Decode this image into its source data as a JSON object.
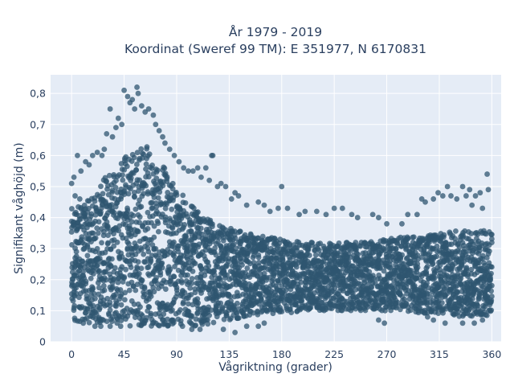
{
  "chart_data": {
    "type": "scatter",
    "title": "År 1979 - 2019",
    "subtitle": "Koordinat (Sweref 99 TM): E 351977, N 6170831",
    "xlabel": "Vågriktning (grader)",
    "ylabel": "Signifikant våghöjd (m)",
    "xlim": [
      -18,
      368
    ],
    "ylim": [
      0,
      0.86
    ],
    "x_ticks": [
      0,
      45,
      90,
      135,
      180,
      225,
      270,
      315,
      360
    ],
    "y_ticks": [
      0,
      0.1,
      0.2,
      0.3,
      0.4,
      0.5,
      0.6,
      0.7,
      0.8
    ],
    "y_tick_labels": [
      "0",
      "0,1",
      "0,2",
      "0,3",
      "0,4",
      "0,5",
      "0,6",
      "0,7",
      "0,8"
    ],
    "grid": true,
    "legend": "none",
    "colors": {
      "marker": "#2f5570",
      "plot_bg": "#e5ecf6",
      "text": "#2a3f5f"
    },
    "band_profile": {
      "x": [
        0,
        10,
        20,
        30,
        40,
        50,
        60,
        70,
        80,
        90,
        100,
        110,
        120,
        135,
        150,
        165,
        180,
        200,
        225,
        250,
        270,
        285,
        300,
        315,
        330,
        345,
        360
      ],
      "low": [
        0.07,
        0.06,
        0.06,
        0.06,
        0.06,
        0.05,
        0.05,
        0.05,
        0.05,
        0.05,
        0.05,
        0.05,
        0.06,
        0.07,
        0.08,
        0.09,
        0.09,
        0.1,
        0.1,
        0.1,
        0.1,
        0.1,
        0.09,
        0.09,
        0.08,
        0.08,
        0.08
      ],
      "high": [
        0.43,
        0.44,
        0.48,
        0.54,
        0.59,
        0.62,
        0.64,
        0.62,
        0.56,
        0.5,
        0.45,
        0.41,
        0.39,
        0.37,
        0.35,
        0.34,
        0.33,
        0.32,
        0.32,
        0.32,
        0.33,
        0.34,
        0.34,
        0.35,
        0.36,
        0.36,
        0.36
      ]
    },
    "outlier_points": [
      [
        45,
        0.81
      ],
      [
        48,
        0.79
      ],
      [
        56,
        0.82
      ],
      [
        57,
        0.8
      ],
      [
        52,
        0.78
      ],
      [
        60,
        0.76
      ],
      [
        63,
        0.74
      ],
      [
        66,
        0.75
      ],
      [
        70,
        0.73
      ],
      [
        50,
        0.77
      ],
      [
        54,
        0.75
      ],
      [
        40,
        0.72
      ],
      [
        43,
        0.7
      ],
      [
        38,
        0.69
      ],
      [
        33,
        0.75
      ],
      [
        30,
        0.67
      ],
      [
        28,
        0.62
      ],
      [
        26,
        0.6
      ],
      [
        35,
        0.66
      ],
      [
        72,
        0.7
      ],
      [
        75,
        0.68
      ],
      [
        78,
        0.66
      ],
      [
        80,
        0.64
      ],
      [
        84,
        0.62
      ],
      [
        88,
        0.6
      ],
      [
        92,
        0.58
      ],
      [
        96,
        0.56
      ],
      [
        100,
        0.55
      ],
      [
        104,
        0.55
      ],
      [
        108,
        0.56
      ],
      [
        115,
        0.56
      ],
      [
        120,
        0.6
      ],
      [
        121,
        0.6
      ],
      [
        111,
        0.53
      ],
      [
        118,
        0.52
      ],
      [
        125,
        0.5
      ],
      [
        128,
        0.51
      ],
      [
        132,
        0.5
      ],
      [
        140,
        0.48
      ],
      [
        143,
        0.47
      ],
      [
        137,
        0.46
      ],
      [
        150,
        0.44
      ],
      [
        160,
        0.45
      ],
      [
        165,
        0.44
      ],
      [
        170,
        0.42
      ],
      [
        177,
        0.43
      ],
      [
        180,
        0.5
      ],
      [
        185,
        0.43
      ],
      [
        195,
        0.41
      ],
      [
        200,
        0.42
      ],
      [
        210,
        0.42
      ],
      [
        218,
        0.41
      ],
      [
        225,
        0.43
      ],
      [
        232,
        0.43
      ],
      [
        240,
        0.41
      ],
      [
        245,
        0.4
      ],
      [
        258,
        0.41
      ],
      [
        263,
        0.4
      ],
      [
        270,
        0.38
      ],
      [
        283,
        0.38
      ],
      [
        288,
        0.41
      ],
      [
        296,
        0.41
      ],
      [
        300,
        0.46
      ],
      [
        303,
        0.45
      ],
      [
        310,
        0.46
      ],
      [
        314,
        0.48
      ],
      [
        318,
        0.47
      ],
      [
        322,
        0.5
      ],
      [
        325,
        0.47
      ],
      [
        330,
        0.46
      ],
      [
        335,
        0.5
      ],
      [
        338,
        0.47
      ],
      [
        341,
        0.49
      ],
      [
        346,
        0.47
      ],
      [
        350,
        0.48
      ],
      [
        356,
        0.54
      ],
      [
        357,
        0.49
      ],
      [
        352,
        0.43
      ],
      [
        343,
        0.44
      ],
      [
        5,
        0.6
      ],
      [
        8,
        0.55
      ],
      [
        2,
        0.53
      ],
      [
        0,
        0.51
      ],
      [
        12,
        0.58
      ],
      [
        15,
        0.57
      ],
      [
        18,
        0.6
      ],
      [
        22,
        0.61
      ],
      [
        3,
        0.47
      ],
      [
        7,
        0.46
      ],
      [
        140,
        0.03
      ],
      [
        150,
        0.05
      ],
      [
        130,
        0.04
      ],
      [
        110,
        0.04
      ],
      [
        95,
        0.05
      ],
      [
        103,
        0.04
      ],
      [
        160,
        0.05
      ],
      [
        165,
        0.06
      ],
      [
        263,
        0.07
      ],
      [
        268,
        0.06
      ],
      [
        305,
        0.08
      ],
      [
        310,
        0.07
      ],
      [
        320,
        0.06
      ],
      [
        335,
        0.06
      ],
      [
        345,
        0.06
      ],
      [
        352,
        0.07
      ],
      [
        20,
        0.05
      ],
      [
        25,
        0.05
      ],
      [
        33,
        0.05
      ],
      [
        42,
        0.05
      ],
      [
        10,
        0.06
      ]
    ]
  }
}
